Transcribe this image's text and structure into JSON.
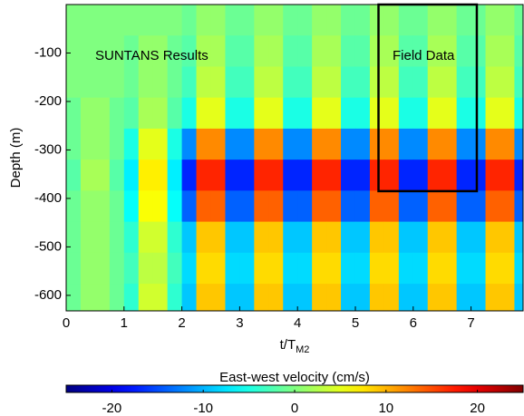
{
  "chart_data": {
    "type": "heatmap",
    "xlabel": "t/T",
    "xlabel_sub": "M2",
    "ylabel": "Depth (m)",
    "colorbar_label": "East-west velocity (cm/s)",
    "clim": [
      -25,
      25
    ],
    "cticks": [
      -20,
      -10,
      0,
      10,
      20
    ],
    "colormap": "jet",
    "xlim": [
      0,
      7.9
    ],
    "xticks": [
      0,
      1,
      2,
      3,
      4,
      5,
      6,
      7
    ],
    "ylim": [
      -632,
      0
    ],
    "yticks": [
      -600,
      -500,
      -400,
      -300,
      -200,
      -100
    ],
    "x": [
      0.125,
      0.375,
      0.625,
      0.875,
      1.125,
      1.375,
      1.625,
      1.875,
      2.125,
      2.375,
      2.625,
      2.875,
      3.125,
      3.375,
      3.625,
      3.875,
      4.125,
      4.375,
      4.625,
      4.875,
      5.125,
      5.375,
      5.625,
      5.875,
      6.125,
      6.375,
      6.625,
      6.875,
      7.125,
      7.375,
      7.625,
      7.875
    ],
    "y": [
      -32,
      -96,
      -160,
      -224,
      -288,
      -352,
      -416,
      -480,
      -544,
      -608
    ],
    "z": [
      [
        0,
        0,
        0,
        0,
        0,
        0,
        0,
        0,
        -1,
        1,
        1,
        -1,
        -1,
        1,
        1,
        -1,
        -1,
        1,
        1,
        -1,
        -1,
        1,
        1,
        -1,
        -1,
        1,
        1,
        -1,
        -1,
        1,
        1,
        -1
      ],
      [
        0,
        0,
        0,
        0,
        -1,
        1,
        1,
        -1,
        -2,
        2,
        2,
        -2,
        -2,
        2,
        2,
        -2,
        -2,
        2,
        2,
        -2,
        -2,
        2,
        2,
        -2,
        -2,
        2,
        2,
        -2,
        -2,
        2,
        2,
        -2
      ],
      [
        0,
        0,
        0,
        0,
        -1,
        1,
        1,
        -1,
        -3,
        3,
        3,
        -3,
        -3,
        3,
        3,
        -3,
        -3,
        3,
        3,
        -3,
        -3,
        3,
        3,
        -3,
        -3,
        3,
        3,
        -3,
        -3,
        3,
        3,
        -3
      ],
      [
        -1,
        1,
        1,
        -1,
        -2,
        2,
        2,
        -2,
        -5,
        5,
        5,
        -5,
        -5,
        5,
        5,
        -5,
        -5,
        5,
        5,
        -5,
        -5,
        5,
        5,
        -5,
        -5,
        5,
        5,
        -5,
        -5,
        5,
        5,
        -5
      ],
      [
        -1,
        1,
        1,
        -1,
        -5,
        5,
        5,
        -5,
        -12,
        12,
        12,
        -12,
        -12,
        12,
        12,
        -12,
        -12,
        12,
        12,
        -12,
        -12,
        12,
        12,
        -12,
        -12,
        12,
        12,
        -12,
        -12,
        12,
        12,
        -12
      ],
      [
        -2,
        2,
        2,
        -2,
        -7,
        7,
        7,
        -7,
        -17,
        17,
        17,
        -17,
        -17,
        17,
        17,
        -17,
        -17,
        17,
        17,
        -17,
        -17,
        17,
        17,
        -17,
        -17,
        17,
        17,
        -17,
        -17,
        17,
        17,
        -17
      ],
      [
        -1,
        1,
        1,
        -1,
        -6,
        6,
        6,
        -6,
        -14,
        14,
        14,
        -14,
        -14,
        14,
        14,
        -14,
        -14,
        14,
        14,
        -14,
        -14,
        14,
        14,
        -14,
        -14,
        14,
        14,
        -14,
        -14,
        14,
        14,
        -14
      ],
      [
        -1,
        1,
        1,
        -1,
        -4,
        4,
        4,
        -4,
        -9,
        9,
        9,
        -9,
        -9,
        9,
        9,
        -9,
        -9,
        9,
        9,
        -9,
        -9,
        9,
        9,
        -9,
        -9,
        9,
        9,
        -9,
        -9,
        9,
        9,
        -9
      ],
      [
        -1,
        1,
        1,
        -1,
        -3,
        3,
        3,
        -3,
        -8,
        8,
        8,
        -8,
        -8,
        8,
        8,
        -8,
        -8,
        8,
        8,
        -8,
        -8,
        8,
        8,
        -8,
        -8,
        8,
        8,
        -8,
        -8,
        8,
        8,
        -8
      ],
      [
        -1,
        1,
        1,
        -1,
        -4,
        4,
        4,
        -4,
        -9,
        9,
        9,
        -9,
        -9,
        9,
        9,
        -9,
        -9,
        9,
        9,
        -9,
        -9,
        9,
        9,
        -9,
        -9,
        9,
        9,
        -9,
        -9,
        9,
        9,
        -9
      ]
    ],
    "annotations": [
      {
        "text": "SUNTANS Results"
      },
      {
        "text": "Field Data",
        "box_x": [
          5.4,
          7.1
        ],
        "box_y": [
          -385,
          0
        ]
      }
    ]
  }
}
